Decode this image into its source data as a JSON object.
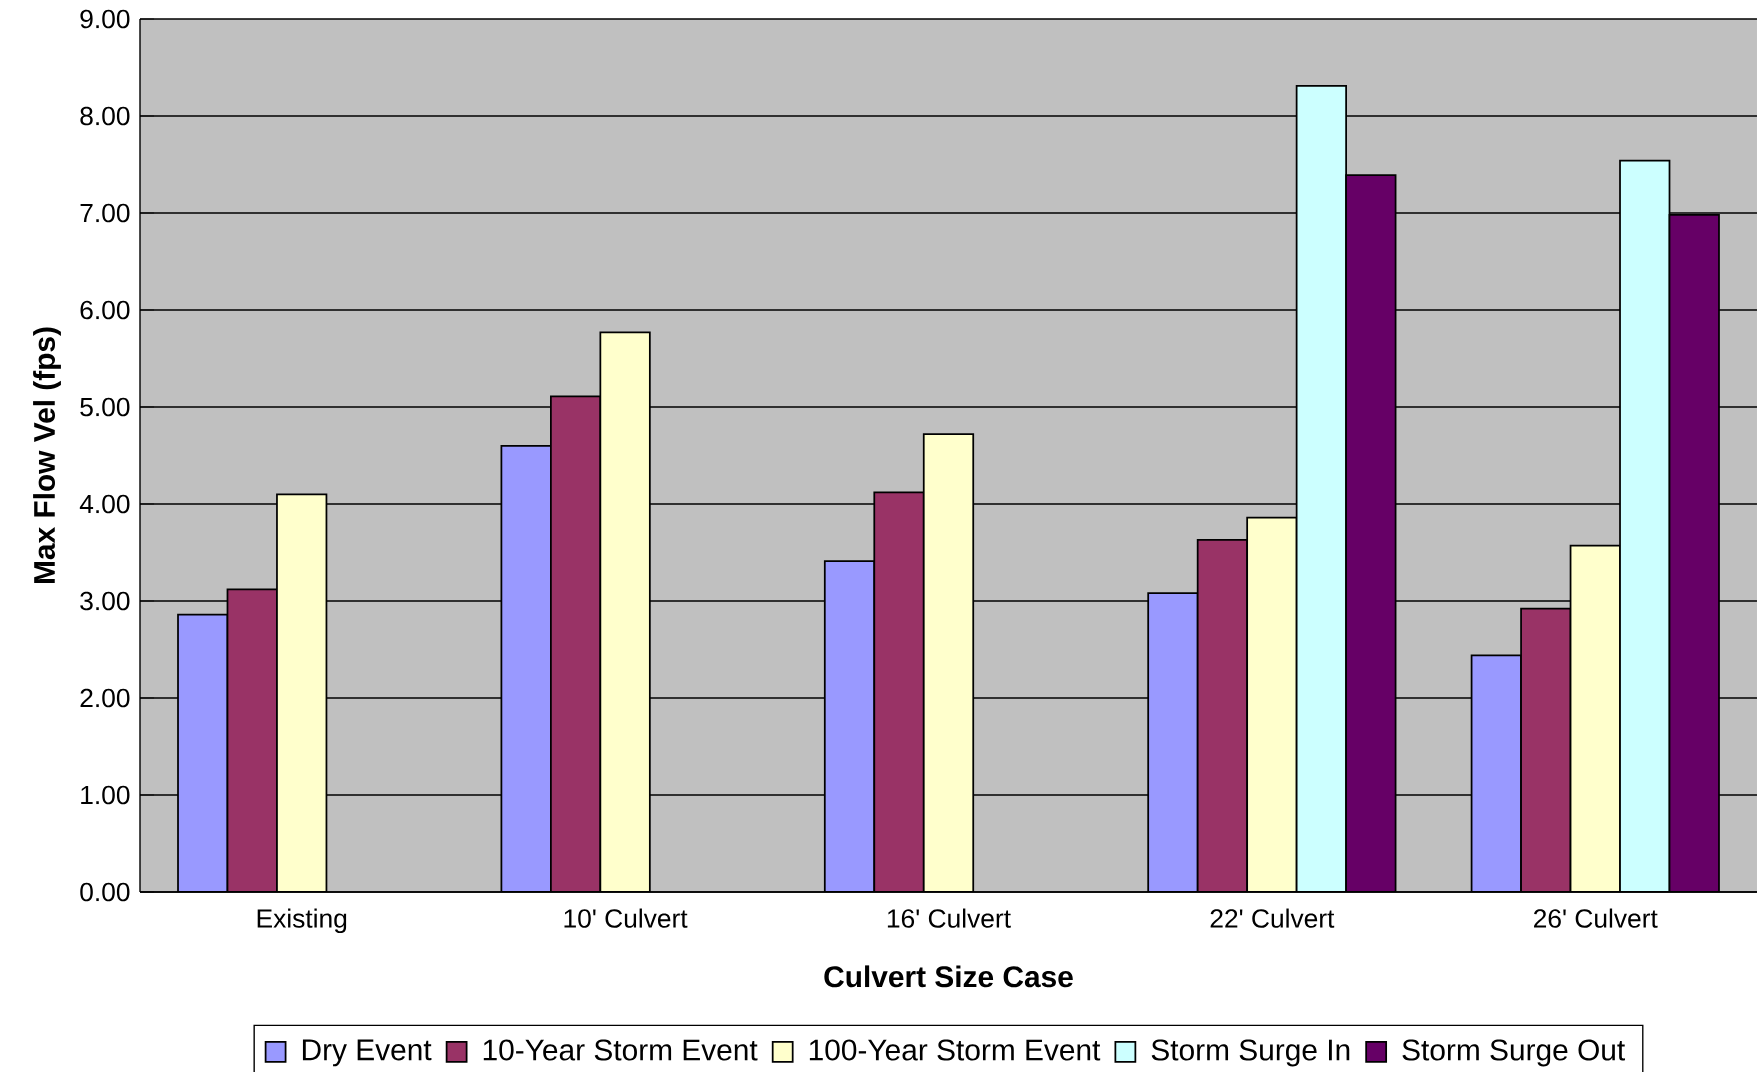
{
  "chart_data": {
    "type": "bar",
    "xlabel": "Culvert Size Case",
    "ylabel": "Max Flow Vel (fps)",
    "categories": [
      "Existing",
      "10' Culvert",
      "16' Culvert",
      "22' Culvert",
      "26' Culvert"
    ],
    "series": [
      {
        "name": "Dry Event",
        "color": "#9999ff",
        "values": [
          2.86,
          4.6,
          3.41,
          3.08,
          2.44
        ]
      },
      {
        "name": "10-Year Storm Event",
        "color": "#993366",
        "values": [
          3.12,
          5.11,
          4.12,
          3.63,
          2.92
        ]
      },
      {
        "name": "100-Year Storm Event",
        "color": "#ffffcc",
        "values": [
          4.1,
          5.77,
          4.72,
          3.86,
          3.57
        ]
      },
      {
        "name": "Storm Surge In",
        "color": "#ccffff",
        "values": [
          null,
          null,
          null,
          8.31,
          7.54
        ]
      },
      {
        "name": "Storm Surge Out",
        "color": "#660066",
        "values": [
          null,
          null,
          null,
          7.39,
          6.98
        ]
      }
    ],
    "ylim": [
      0,
      9
    ],
    "yticks": [
      {
        "value": 0,
        "label": "0.00"
      },
      {
        "value": 1,
        "label": "1.00"
      },
      {
        "value": 2,
        "label": "2.00"
      },
      {
        "value": 3,
        "label": "3.00"
      },
      {
        "value": 4,
        "label": "4.00"
      },
      {
        "value": 5,
        "label": "5.00"
      },
      {
        "value": 6,
        "label": "6.00"
      },
      {
        "value": 7,
        "label": "7.00"
      },
      {
        "value": 8,
        "label": "8.00"
      },
      {
        "value": 9,
        "label": "9.00"
      }
    ],
    "grid": "y",
    "legend": "bottom"
  }
}
